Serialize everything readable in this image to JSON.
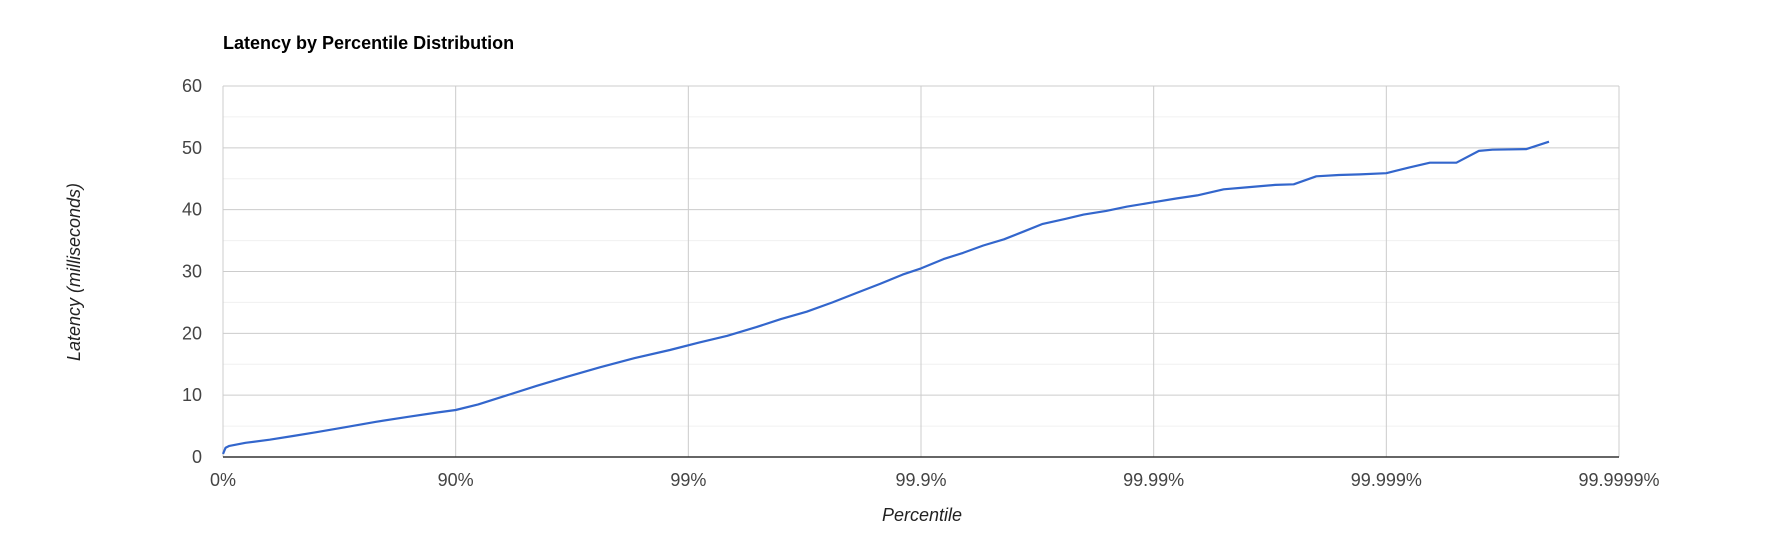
{
  "chart_data": {
    "type": "line",
    "title": "Latency by Percentile Distribution",
    "xlabel": "Percentile",
    "ylabel": "Latency (milliseconds)",
    "x_scale": "log-inverse-percentile",
    "x_ticks": [
      "0%",
      "90%",
      "99%",
      "99.9%",
      "99.99%",
      "99.999%",
      "99.9999%"
    ],
    "x_tick_nines": [
      0,
      1,
      2,
      3,
      4,
      5,
      6
    ],
    "y_ticks": [
      0,
      10,
      20,
      30,
      40,
      50,
      60
    ],
    "ylim": [
      0,
      60
    ],
    "grid": true,
    "minor_y_grid": true,
    "legend": "none",
    "line_color": "#3366cc",
    "series": [
      {
        "x_percentile": [
          0,
          2.5,
          6,
          20,
          37,
          50,
          60,
          70,
          78,
          84,
          88,
          90,
          92,
          94,
          95.5,
          96.7,
          97.6,
          98.3,
          98.8,
          99.1,
          99.32,
          99.49,
          99.6,
          99.69,
          99.76,
          99.81,
          99.85,
          99.88,
          99.9,
          99.92,
          99.934,
          99.946,
          99.956,
          99.964,
          99.97,
          99.976,
          99.98,
          99.984,
          99.987,
          99.99,
          99.992,
          99.9935,
          99.995,
          99.996,
          99.997,
          99.9975,
          99.998,
          99.9984,
          99.9987,
          99.999,
          99.9992,
          99.99935,
          99.9995,
          99.9996,
          99.99965,
          99.99975,
          99.9998
        ],
        "y": [
          0.5,
          1.5,
          1.8,
          2.3,
          2.8,
          3.4,
          4.0,
          4.8,
          5.7,
          6.5,
          7.2,
          7.6,
          8.5,
          10.0,
          11.5,
          13.0,
          14.5,
          16.0,
          17.3,
          18.5,
          19.6,
          21.0,
          22.3,
          23.5,
          25.0,
          26.5,
          28.0,
          29.5,
          30.5,
          32.0,
          33.0,
          34.2,
          35.2,
          36.5,
          37.7,
          38.5,
          39.2,
          39.8,
          40.5,
          41.2,
          41.8,
          42.3,
          43.3,
          43.6,
          44.0,
          44.1,
          45.4,
          45.6,
          45.7,
          45.9,
          46.8,
          47.6,
          47.6,
          49.5,
          49.7,
          49.8,
          51.0
        ]
      }
    ]
  }
}
